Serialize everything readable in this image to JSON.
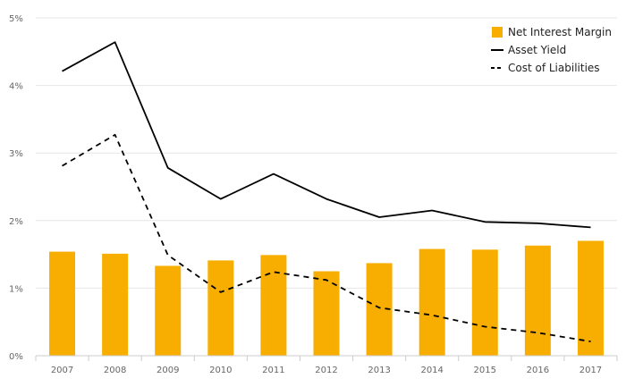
{
  "chart_data": {
    "type": "bar",
    "categories": [
      "2007",
      "2008",
      "2009",
      "2010",
      "2011",
      "2012",
      "2013",
      "2014",
      "2015",
      "2016",
      "2017"
    ],
    "series": [
      {
        "name": "Net Interest Margin",
        "kind": "bar",
        "color": "#F7AE00",
        "values": [
          1.54,
          1.51,
          1.33,
          1.41,
          1.49,
          1.25,
          1.37,
          1.58,
          1.57,
          1.63,
          1.7
        ]
      },
      {
        "name": "Asset Yield",
        "kind": "line",
        "style": "solid",
        "color": "#000000",
        "values": [
          4.21,
          4.64,
          2.78,
          2.32,
          2.69,
          2.32,
          2.05,
          2.15,
          1.98,
          1.96,
          1.9
        ]
      },
      {
        "name": "Cost of Liabilities",
        "kind": "line",
        "style": "dashed",
        "color": "#000000",
        "values": [
          2.81,
          3.27,
          1.49,
          0.94,
          1.24,
          1.12,
          0.71,
          0.6,
          0.43,
          0.34,
          0.21
        ]
      }
    ],
    "y_ticks": [
      "0%",
      "1%",
      "2%",
      "3%",
      "4%",
      "5%"
    ],
    "ylim": [
      0,
      5
    ],
    "y_unit": "%",
    "grid": true,
    "legend_position": "top-right",
    "title": "",
    "xlabel": "",
    "ylabel": ""
  }
}
